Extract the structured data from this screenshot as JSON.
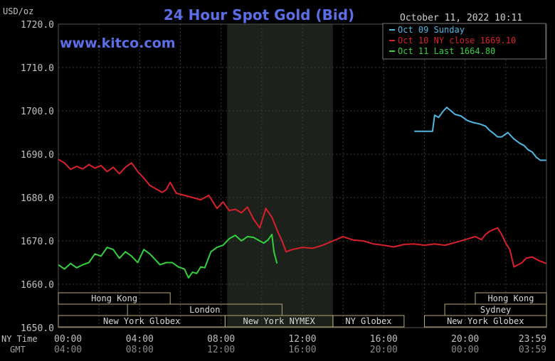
{
  "header": {
    "title": "24 Hour Spot Gold (Bid)",
    "timestamp": "October 11, 2022 10:11",
    "unit": "USD/oz",
    "website": "www.kitco.com"
  },
  "colors": {
    "background": "#000000",
    "title": "#5B6EE6",
    "website": "#5B6EE6",
    "grid": "#3a3a3a",
    "axis_text": "#c0c0c0",
    "night_shade": "#1c211c",
    "session_border": "#b6a771",
    "session_text": "#d8d8d8",
    "series": [
      "#4FB8E0",
      "#D8202A",
      "#33D13A"
    ]
  },
  "left_axis": {
    "ny_label": "NY Time",
    "gmt_label": "GMT"
  },
  "x_ny_ticks": [
    "00:00",
    "04:00",
    "08:00",
    "12:00",
    "16:00",
    "20:00",
    "23:59"
  ],
  "x_gmt_ticks": [
    "04:00",
    "08:00",
    "12:00",
    "16:00",
    "20:00",
    "00:00",
    "03:59"
  ],
  "sessions": [
    {
      "label": "Hong Kong",
      "start": 0,
      "end": 5.5,
      "row": 0
    },
    {
      "label": "London",
      "start": 3.4,
      "end": 11.0,
      "row": 1
    },
    {
      "label": "New York Globex",
      "start": 0,
      "end": 8.2,
      "row": 2
    },
    {
      "label": "New York NYMEX",
      "start": 8.2,
      "end": 13.5,
      "row": 2
    },
    {
      "label": "NY Globex",
      "start": 13.5,
      "end": 17.0,
      "row": 2
    },
    {
      "label": "Hong Kong",
      "start": 20.5,
      "end": 24.0,
      "row": 0
    },
    {
      "label": "Sydney",
      "start": 19.0,
      "end": 24.0,
      "row": 1
    },
    {
      "label": "New York Globex",
      "start": 18.0,
      "end": 24.0,
      "row": 2
    }
  ],
  "chart_data": {
    "type": "line",
    "title": "24 Hour Spot Gold (Bid)",
    "ylabel": "USD/oz",
    "ylim": [
      1650,
      1720
    ],
    "xlim": [
      0,
      24
    ],
    "yticks": [
      "1720.0",
      "1710.0",
      "1700.0",
      "1690.0",
      "1680.0",
      "1670.0",
      "1660.0",
      "1650.0"
    ],
    "shaded_range": [
      8.3,
      13.5
    ],
    "legend_position": "top-right",
    "series": [
      {
        "name": "Oct 09 Sunday",
        "x": [
          17.5,
          18.0,
          18.4,
          18.5,
          18.7,
          18.9,
          19.1,
          19.3,
          19.5,
          19.8,
          20.1,
          20.4,
          20.7,
          21.0,
          21.2,
          21.4,
          21.6,
          21.8,
          22.1,
          22.4,
          22.7,
          22.9,
          23.1,
          23.3,
          23.5,
          23.7,
          23.99
        ],
        "y": [
          1695.3,
          1695.3,
          1695.3,
          1699.0,
          1698.5,
          1699.8,
          1700.8,
          1700.0,
          1699.2,
          1698.8,
          1697.8,
          1697.3,
          1697.0,
          1696.5,
          1695.5,
          1694.8,
          1694.0,
          1694.0,
          1695.0,
          1693.5,
          1692.5,
          1692.0,
          1691.0,
          1690.5,
          1689.3,
          1688.6,
          1688.6
        ]
      },
      {
        "name": "Oct 10 NY close 1669.10",
        "x": [
          0,
          0.3,
          0.6,
          0.9,
          1.2,
          1.5,
          1.8,
          2.1,
          2.4,
          2.7,
          3.0,
          3.3,
          3.6,
          3.9,
          4.2,
          4.5,
          4.8,
          5.1,
          5.3,
          5.5,
          5.8,
          6.2,
          6.6,
          7.0,
          7.4,
          7.8,
          8.1,
          8.4,
          8.7,
          9.0,
          9.3,
          9.6,
          9.9,
          10.2,
          10.5,
          10.8,
          11.0,
          11.2,
          11.5,
          12.0,
          12.5,
          13.0,
          13.5,
          14.0,
          14.5,
          15.0,
          15.5,
          16.0,
          16.5,
          17.0,
          17.5,
          18.0,
          18.5,
          19.0,
          19.5,
          20.0,
          20.5,
          20.8,
          21.0,
          21.2,
          21.4,
          21.6,
          21.8,
          22.0,
          22.2,
          22.4,
          22.6,
          22.8,
          23.0,
          23.3,
          23.6,
          23.99
        ],
        "y": [
          1688.8,
          1688.0,
          1686.5,
          1687.2,
          1686.6,
          1687.6,
          1686.8,
          1687.4,
          1686.0,
          1687.0,
          1685.5,
          1687.0,
          1688.0,
          1686.0,
          1684.5,
          1682.8,
          1682.0,
          1681.2,
          1681.8,
          1683.5,
          1681.0,
          1680.5,
          1680.0,
          1679.5,
          1680.5,
          1677.5,
          1679.0,
          1677.0,
          1677.3,
          1676.5,
          1677.8,
          1675.0,
          1673.0,
          1677.5,
          1675.5,
          1672.0,
          1670.0,
          1667.5,
          1668.0,
          1668.5,
          1668.3,
          1669.0,
          1670.0,
          1671.0,
          1670.2,
          1670.0,
          1669.3,
          1669.0,
          1668.6,
          1669.2,
          1669.3,
          1669.0,
          1669.3,
          1669.0,
          1669.6,
          1670.3,
          1671.0,
          1670.3,
          1671.5,
          1672.2,
          1672.6,
          1673.0,
          1671.5,
          1669.5,
          1668.0,
          1664.0,
          1664.5,
          1665.0,
          1666.0,
          1666.3,
          1665.5,
          1664.8
        ]
      },
      {
        "name": "Oct 11 Last 1664.80",
        "x": [
          0,
          0.3,
          0.6,
          0.9,
          1.2,
          1.5,
          1.8,
          2.1,
          2.4,
          2.7,
          3.0,
          3.3,
          3.6,
          3.9,
          4.2,
          4.5,
          4.8,
          5.0,
          5.3,
          5.6,
          5.9,
          6.2,
          6.4,
          6.6,
          6.8,
          7.0,
          7.2,
          7.5,
          7.8,
          8.1,
          8.4,
          8.7,
          9.0,
          9.3,
          9.6,
          9.9,
          10.1,
          10.3,
          10.5,
          10.6,
          10.75
        ],
        "y": [
          1664.5,
          1663.5,
          1664.8,
          1663.8,
          1664.5,
          1665.0,
          1667.0,
          1666.5,
          1668.5,
          1668.0,
          1666.0,
          1667.5,
          1666.5,
          1665.0,
          1668.0,
          1667.0,
          1665.5,
          1664.5,
          1665.0,
          1665.0,
          1664.0,
          1663.5,
          1661.5,
          1662.8,
          1662.5,
          1664.0,
          1663.8,
          1667.5,
          1668.5,
          1669.0,
          1670.5,
          1671.3,
          1670.0,
          1671.0,
          1670.8,
          1670.0,
          1669.5,
          1670.2,
          1671.5,
          1667.5,
          1664.8
        ]
      }
    ]
  }
}
